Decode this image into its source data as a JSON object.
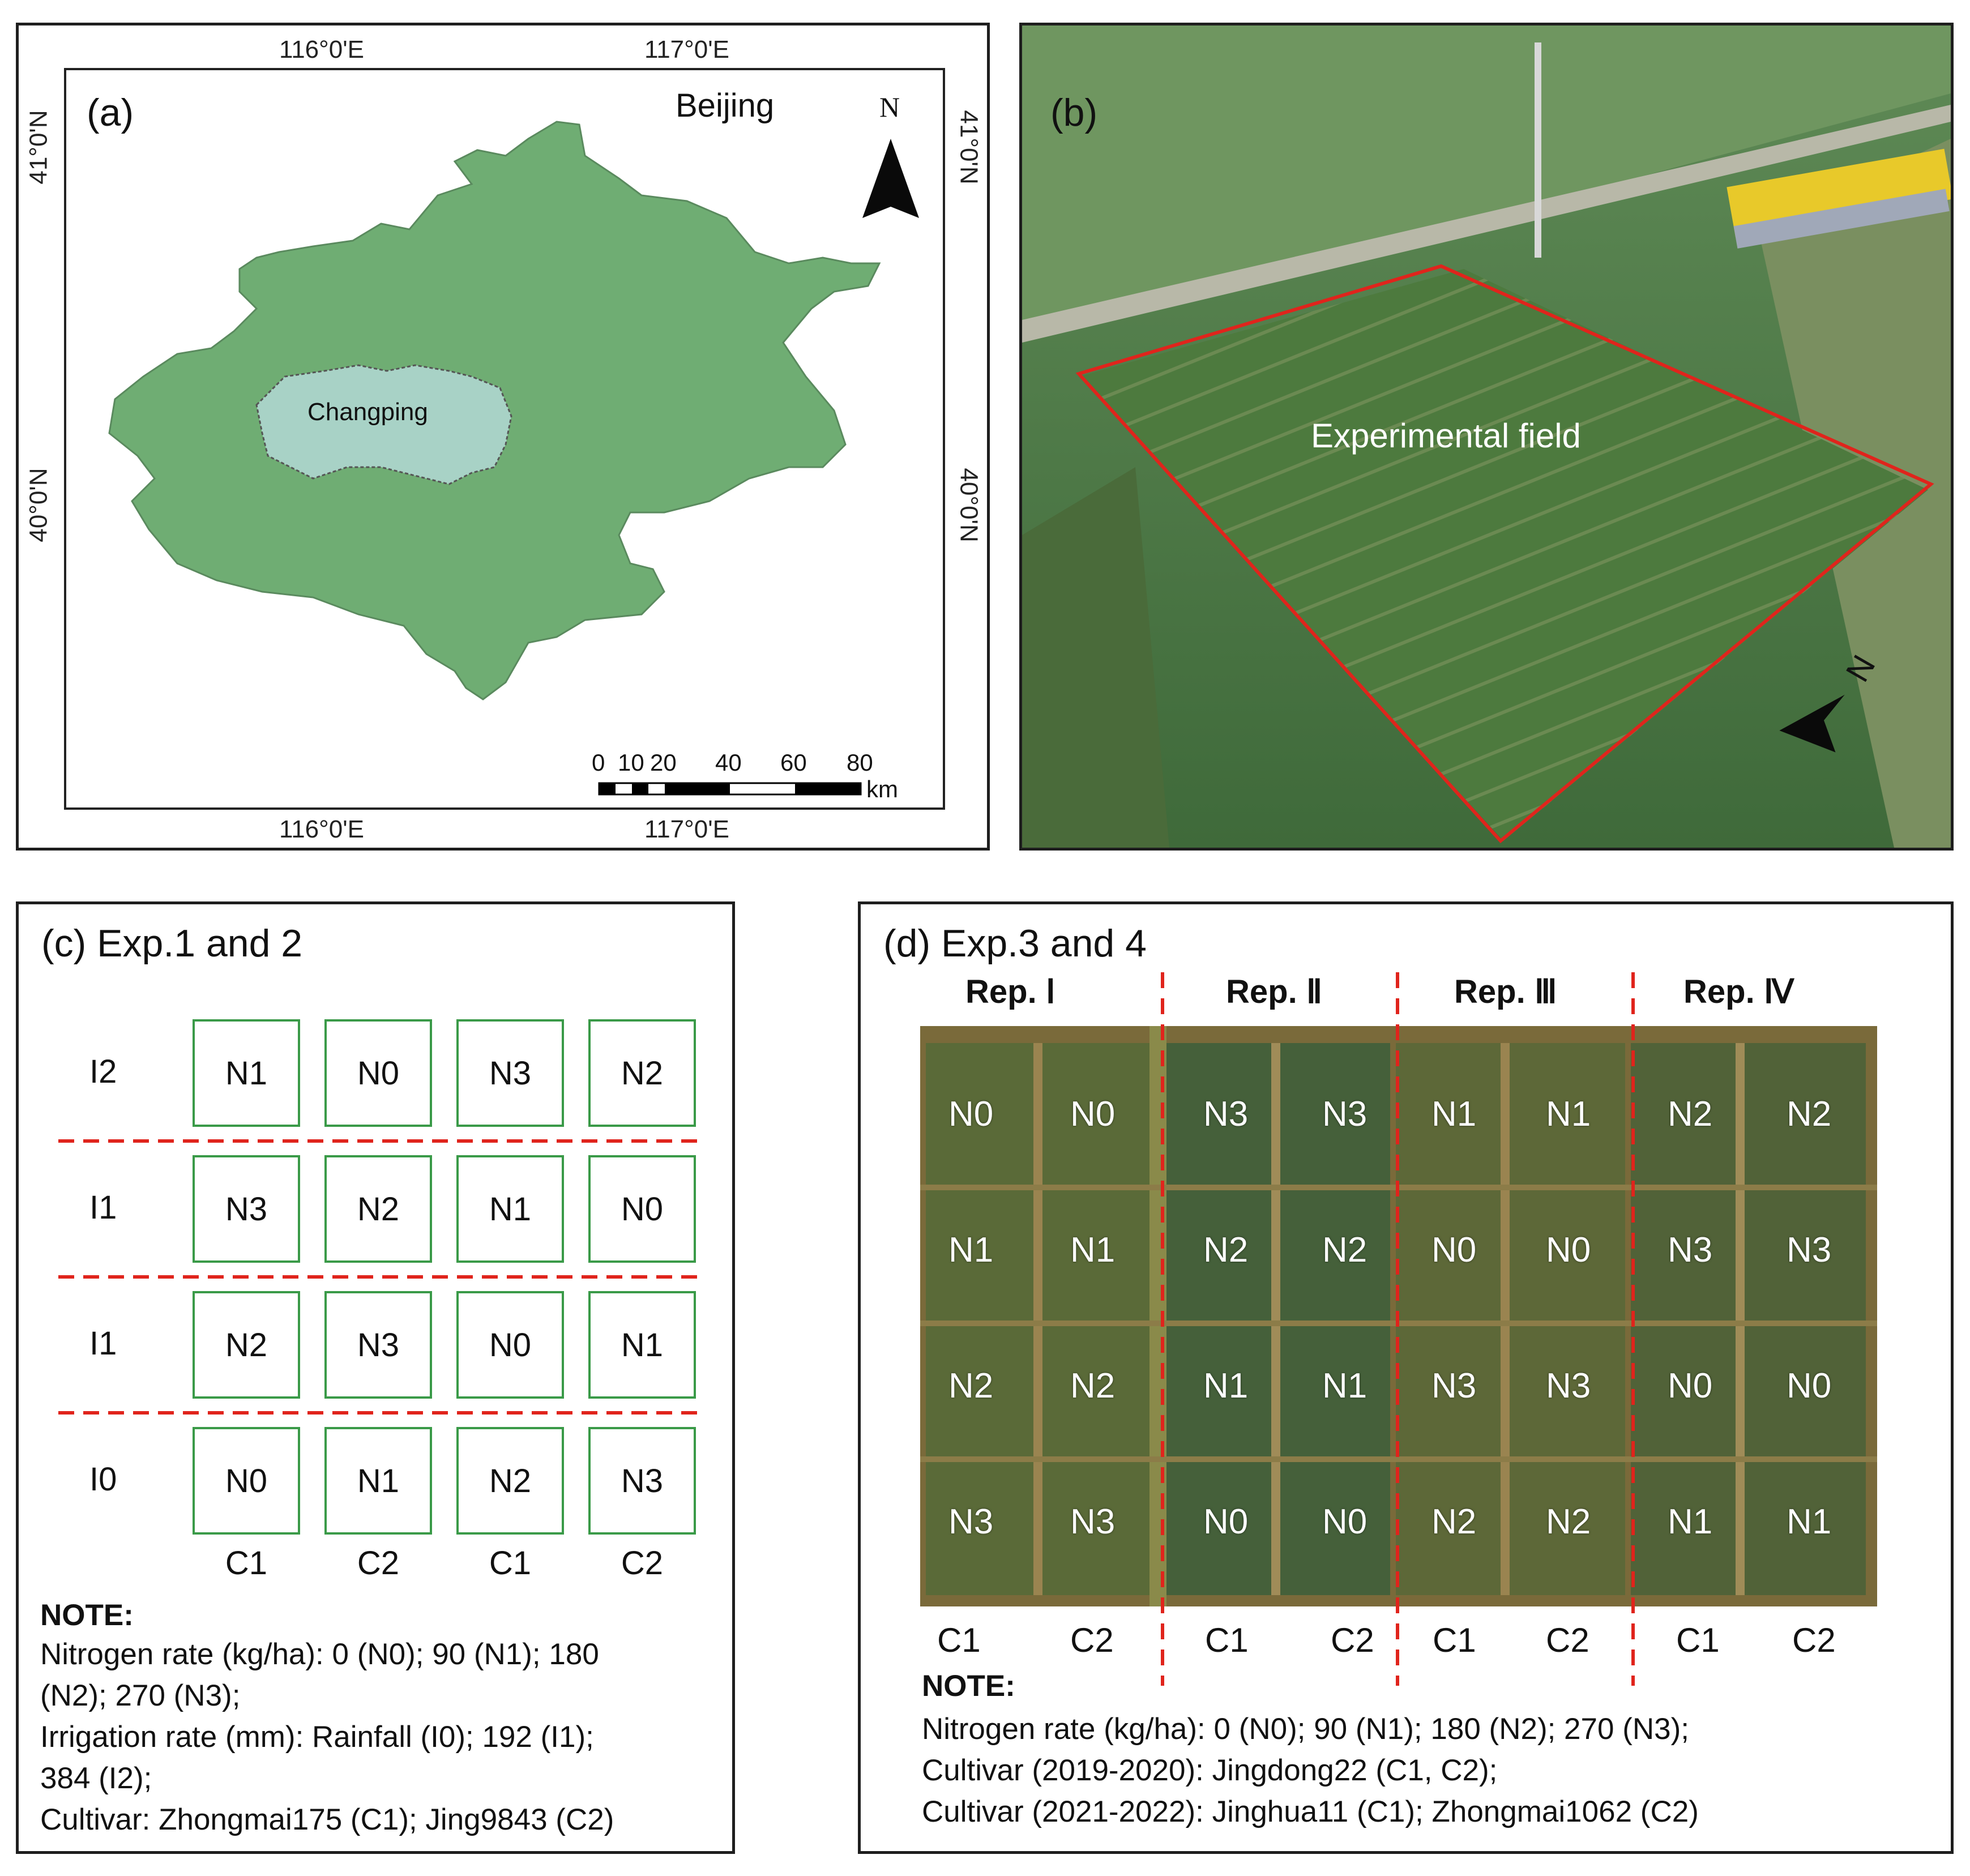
{
  "panel_a": {
    "label": "(a)",
    "region": "Beijing",
    "district": "Changping",
    "north": "N",
    "top_lon": [
      "116°0'E",
      "117°0'E"
    ],
    "bottom_lon": [
      "116°0'E",
      "117°0'E"
    ],
    "left_lat": [
      "41°0'N",
      "40°0'N"
    ],
    "right_lat": [
      "41°0'N",
      "40°0'N"
    ],
    "scale_ticks": [
      "0",
      "10",
      "20",
      "40",
      "60",
      "80"
    ],
    "scale_unit": "km",
    "colors": {
      "beijing": "#6fad73",
      "changping": "#a8d2c6"
    }
  },
  "panel_b": {
    "label": "(b)",
    "field_label": "Experimental field",
    "north": "N",
    "colors": {
      "boundary": "#e0241c"
    }
  },
  "panel_c": {
    "title": "(c) Exp.1 and 2",
    "rows": [
      {
        "label": "I2",
        "plots": [
          "N1",
          "N0",
          "N3",
          "N2"
        ]
      },
      {
        "label": "I1",
        "plots": [
          "N3",
          "N2",
          "N1",
          "N0"
        ]
      },
      {
        "label": "I1",
        "plots": [
          "N2",
          "N3",
          "N0",
          "N1"
        ]
      },
      {
        "label": "I0",
        "plots": [
          "N0",
          "N1",
          "N2",
          "N3"
        ]
      }
    ],
    "columns": [
      "C1",
      "C2",
      "C1",
      "C2"
    ],
    "note_heading": "NOTE:",
    "note_lines": [
      "Nitrogen rate (kg/ha): 0 (N0); 90 (N1); 180",
      "(N2); 270 (N3);",
      "Irrigation rate (mm): Rainfall (I0); 192 (I1);",
      "384 (I2);",
      "Cultivar: Zhongmai175 (C1); Jing9843 (C2)"
    ]
  },
  "panel_d": {
    "title": "(d) Exp.3 and 4",
    "reps": [
      "Rep. Ⅰ",
      "Rep. Ⅱ",
      "Rep. Ⅲ",
      "Rep. Ⅳ"
    ],
    "grid": [
      [
        "N0",
        "N0",
        "N3",
        "N3",
        "N1",
        "N1",
        "N2",
        "N2"
      ],
      [
        "N1",
        "N1",
        "N2",
        "N2",
        "N0",
        "N0",
        "N3",
        "N3"
      ],
      [
        "N2",
        "N2",
        "N1",
        "N1",
        "N3",
        "N3",
        "N0",
        "N0"
      ],
      [
        "N3",
        "N3",
        "N0",
        "N0",
        "N2",
        "N2",
        "N1",
        "N1"
      ]
    ],
    "columns": [
      "C1",
      "C2",
      "C1",
      "C2",
      "C1",
      "C2",
      "C1",
      "C2"
    ],
    "note_heading": "NOTE:",
    "note_lines": [
      "Nitrogen rate (kg/ha): 0 (N0); 90 (N1); 180 (N2); 270 (N3);",
      "Cultivar (2019-2020): Jingdong22 (C1, C2);",
      "Cultivar (2021-2022): Jinghua11 (C1); Zhongmai1062 (C2)"
    ]
  }
}
